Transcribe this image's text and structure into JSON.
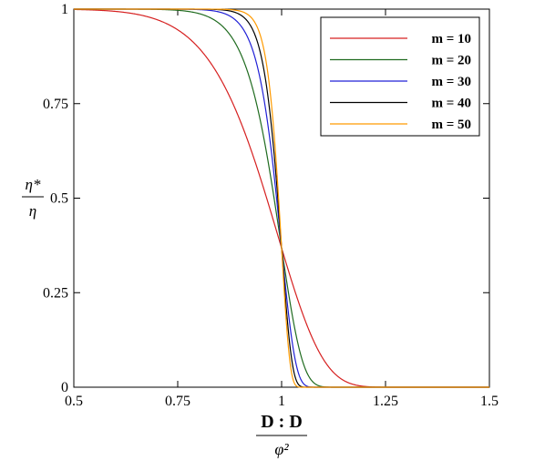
{
  "chart_data": {
    "type": "line",
    "title": "",
    "xlabel": {
      "numerator": "D : D",
      "denominator": "φ²"
    },
    "ylabel": {
      "numerator": "η*",
      "denominator": "η"
    },
    "xlim": [
      0.5,
      1.5
    ],
    "ylim": [
      0,
      1
    ],
    "x_ticks": [
      "0.5",
      "0.75",
      "1",
      "1.25",
      "1.5"
    ],
    "y_ticks": [
      "0",
      "0.25",
      "0.5",
      "0.75",
      "1"
    ],
    "grid": false,
    "legend_position": "top-right",
    "function": "y = exp(-x^m)",
    "series": [
      {
        "name": "m = 10",
        "m": 10,
        "color": "#d62020"
      },
      {
        "name": "m = 20",
        "m": 20,
        "color": "#1f6b1f"
      },
      {
        "name": "m = 30",
        "m": 30,
        "color": "#2020d6"
      },
      {
        "name": "m = 40",
        "m": 40,
        "color": "#000000"
      },
      {
        "name": "m = 50",
        "m": 50,
        "color": "#ff9a00"
      }
    ]
  }
}
